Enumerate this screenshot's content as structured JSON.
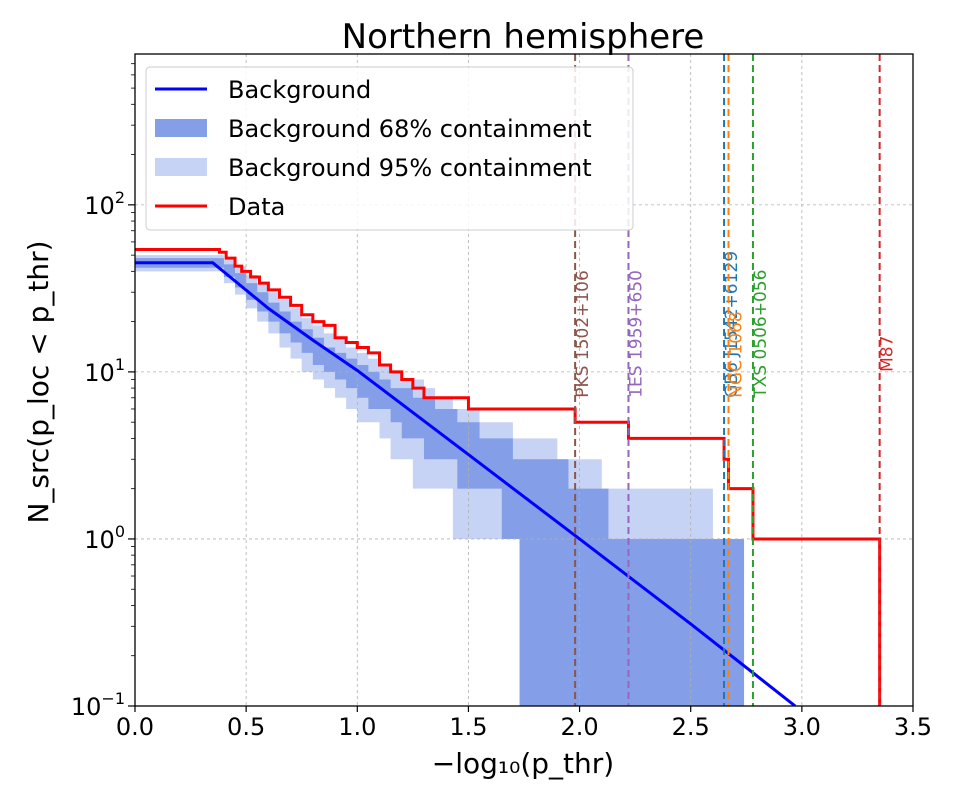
{
  "chart_data": {
    "type": "line",
    "title": "Northern hemisphere",
    "xlabel": "−log₁₀(p_thr)",
    "ylabel": "N_src(p_loc < p_thr)",
    "xlim": [
      0,
      3.5
    ],
    "ylim": [
      0.1,
      800
    ],
    "yscale": "log",
    "grid": true,
    "legend_position": "top-left",
    "x_ticks": [
      {
        "value": 0.0,
        "label": "0.0"
      },
      {
        "value": 0.5,
        "label": "0.5"
      },
      {
        "value": 1.0,
        "label": "1.0"
      },
      {
        "value": 1.5,
        "label": "1.5"
      },
      {
        "value": 2.0,
        "label": "2.0"
      },
      {
        "value": 2.5,
        "label": "2.5"
      },
      {
        "value": 3.0,
        "label": "3.0"
      },
      {
        "value": 3.5,
        "label": "3.5"
      }
    ],
    "y_ticks": [
      {
        "value": 0.1,
        "base": "10",
        "exp": "−1"
      },
      {
        "value": 1,
        "base": "10",
        "exp": "0"
      },
      {
        "value": 10,
        "base": "10",
        "exp": "1"
      },
      {
        "value": 100,
        "base": "10",
        "exp": "2"
      }
    ],
    "legend": [
      {
        "label": "Background",
        "kind": "line",
        "color": "#0000ff"
      },
      {
        "label": "Background 68% containment",
        "kind": "patch",
        "color": "#849ee8"
      },
      {
        "label": "Background 95% containment",
        "kind": "patch",
        "color": "#c7d3f4"
      },
      {
        "label": "Data",
        "kind": "line",
        "color": "#ff0000"
      }
    ],
    "colors": {
      "background_line": "#0000ff",
      "band68": "#849ee8",
      "band95": "#c7d3f4",
      "data": "#ff0000"
    },
    "background": {
      "x": [
        0.0,
        0.35,
        0.45,
        0.6,
        0.8,
        1.0,
        1.5,
        2.0,
        2.5,
        2.97
      ],
      "y": [
        45,
        45,
        35,
        24,
        15.5,
        10.2,
        3.2,
        1.0,
        0.31,
        0.1
      ]
    },
    "band68": {
      "x": [
        0.0,
        0.35,
        0.4,
        0.45,
        0.5,
        0.55,
        0.6,
        0.65,
        0.7,
        0.75,
        0.8,
        0.85,
        0.9,
        0.95,
        1.0,
        1.05,
        1.1,
        1.15,
        1.2,
        1.25,
        1.3,
        1.35,
        1.4,
        1.45,
        1.5,
        1.55,
        1.6,
        1.65,
        1.7,
        1.73,
        1.8,
        1.85,
        1.9,
        1.95,
        2.0,
        2.05,
        2.1,
        2.13,
        2.2,
        2.3,
        2.4,
        2.5,
        2.6,
        2.65,
        2.7,
        2.74
      ],
      "upper": [
        48,
        48,
        44,
        39,
        34,
        30,
        26,
        23,
        20,
        18,
        16,
        14,
        13,
        12,
        11,
        10,
        9,
        8,
        8,
        7,
        7,
        6,
        6,
        5,
        5,
        4,
        4,
        4,
        3,
        3,
        3,
        3,
        3,
        2,
        2,
        2,
        2,
        1,
        1,
        1,
        1,
        1,
        1,
        1,
        1,
        1
      ],
      "lower": [
        42,
        42,
        37,
        32,
        27,
        23,
        20,
        17,
        15,
        13,
        11,
        10,
        9,
        8,
        7,
        6,
        6,
        5,
        4,
        4,
        3,
        3,
        3,
        2,
        2,
        2,
        2,
        1,
        1,
        0.1,
        0.1,
        0.1,
        0.1,
        0.1,
        0.1,
        0.1,
        0.1,
        0.1,
        0.1,
        0.1,
        0.1,
        0.1,
        0.1,
        0.1,
        0.1,
        0.1
      ]
    },
    "band95": {
      "x": [
        0.0,
        0.35,
        0.4,
        0.45,
        0.5,
        0.55,
        0.6,
        0.65,
        0.7,
        0.75,
        0.8,
        0.85,
        0.9,
        0.95,
        1.0,
        1.05,
        1.1,
        1.15,
        1.2,
        1.25,
        1.3,
        1.35,
        1.4,
        1.43,
        1.5,
        1.55,
        1.6,
        1.65,
        1.7,
        1.75,
        1.8,
        1.85,
        1.9,
        1.95,
        2.0,
        2.05,
        2.1,
        2.15,
        2.2,
        2.3,
        2.4,
        2.5,
        2.6,
        2.7,
        3.0,
        3.5
      ],
      "upper": [
        50,
        50,
        47,
        43,
        38,
        34,
        30,
        27,
        24,
        21,
        19,
        17,
        16,
        14,
        13,
        12,
        11,
        10,
        9,
        9,
        8,
        7,
        7,
        6,
        6,
        5,
        5,
        5,
        4,
        4,
        4,
        4,
        3,
        3,
        3,
        3,
        2,
        2,
        2,
        2,
        2,
        2,
        1,
        1,
        1,
        1
      ],
      "lower": [
        40,
        40,
        34,
        29,
        24,
        20,
        17,
        14,
        12,
        10,
        9,
        8,
        7,
        6,
        5,
        5,
        4,
        3,
        3,
        2,
        2,
        2,
        2,
        1,
        1,
        1,
        1,
        1,
        1,
        1,
        1,
        1,
        1,
        1,
        1,
        1,
        1,
        1,
        1,
        1,
        1,
        1,
        1,
        1,
        1,
        1
      ]
    },
    "data_steps": {
      "x": [
        0.0,
        0.38,
        0.41,
        0.45,
        0.48,
        0.52,
        0.56,
        0.6,
        0.65,
        0.7,
        0.75,
        0.8,
        0.85,
        0.9,
        0.95,
        1.0,
        1.05,
        1.1,
        1.15,
        1.2,
        1.25,
        1.3,
        1.4,
        1.5,
        1.6,
        1.7,
        1.8,
        1.98,
        2.22,
        2.65,
        2.67,
        2.78,
        3.35
      ],
      "y": [
        54,
        52,
        48,
        43,
        40,
        37,
        34,
        31,
        28,
        25,
        22,
        20,
        19,
        16,
        15,
        14,
        13,
        11,
        10,
        9,
        8,
        7,
        7,
        6,
        6,
        6,
        6,
        5,
        4,
        3,
        2,
        1,
        1
      ]
    },
    "sources": [
      {
        "name": "PKS 1502+106",
        "x": 1.98,
        "color": "#8c564b"
      },
      {
        "name": "1ES 1959+650",
        "x": 2.22,
        "color": "#9467bd"
      },
      {
        "name": "GB6 J1542+6129",
        "x": 2.65,
        "color": "#1f77b4"
      },
      {
        "name": "NGC 1068",
        "x": 2.67,
        "color": "#ff7f0e"
      },
      {
        "name": "TXS 0506+056",
        "x": 2.78,
        "color": "#2ca02c"
      },
      {
        "name": "M87",
        "x": 3.35,
        "color": "#d62728"
      }
    ]
  }
}
